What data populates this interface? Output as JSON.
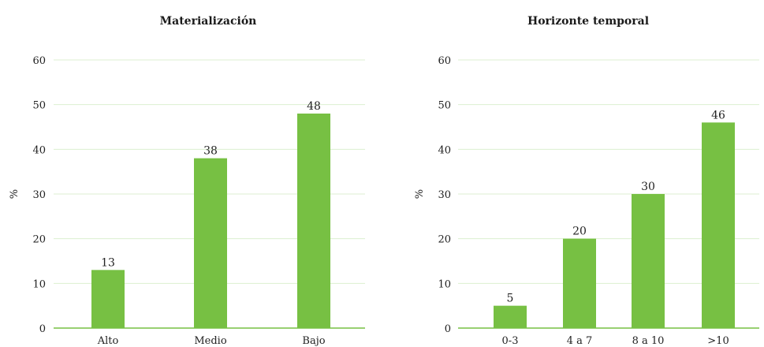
{
  "colors": {
    "bar": "#77c043",
    "grid": "#dcefd0",
    "baseline": "#77c043"
  },
  "chart_data": [
    {
      "type": "bar",
      "title": "Materialización",
      "ylabel": "%",
      "xlabel": "",
      "categories": [
        "Alto",
        "Medio",
        "Bajo"
      ],
      "values": [
        13,
        38,
        48
      ],
      "data_labels": [
        "13",
        "38",
        "48"
      ],
      "ylim": [
        0,
        60
      ],
      "yticks": [
        0,
        10,
        20,
        30,
        40,
        50,
        60
      ],
      "ytick_labels": [
        "0",
        "10",
        "20",
        "30",
        "40",
        "50",
        "60"
      ],
      "grid": true,
      "legend": "none"
    },
    {
      "type": "bar",
      "title": "Horizonte temporal",
      "ylabel": "%",
      "xlabel": "",
      "categories": [
        "0-3",
        "4 a 7",
        "8 a 10",
        ">10"
      ],
      "values": [
        5,
        20,
        30,
        46
      ],
      "data_labels": [
        "5",
        "20",
        "30",
        "46"
      ],
      "ylim": [
        0,
        60
      ],
      "yticks": [
        0,
        10,
        20,
        30,
        40,
        50,
        60
      ],
      "ytick_labels": [
        "0",
        "10",
        "20",
        "30",
        "40",
        "50",
        "60"
      ],
      "grid": true,
      "legend": "none"
    }
  ]
}
